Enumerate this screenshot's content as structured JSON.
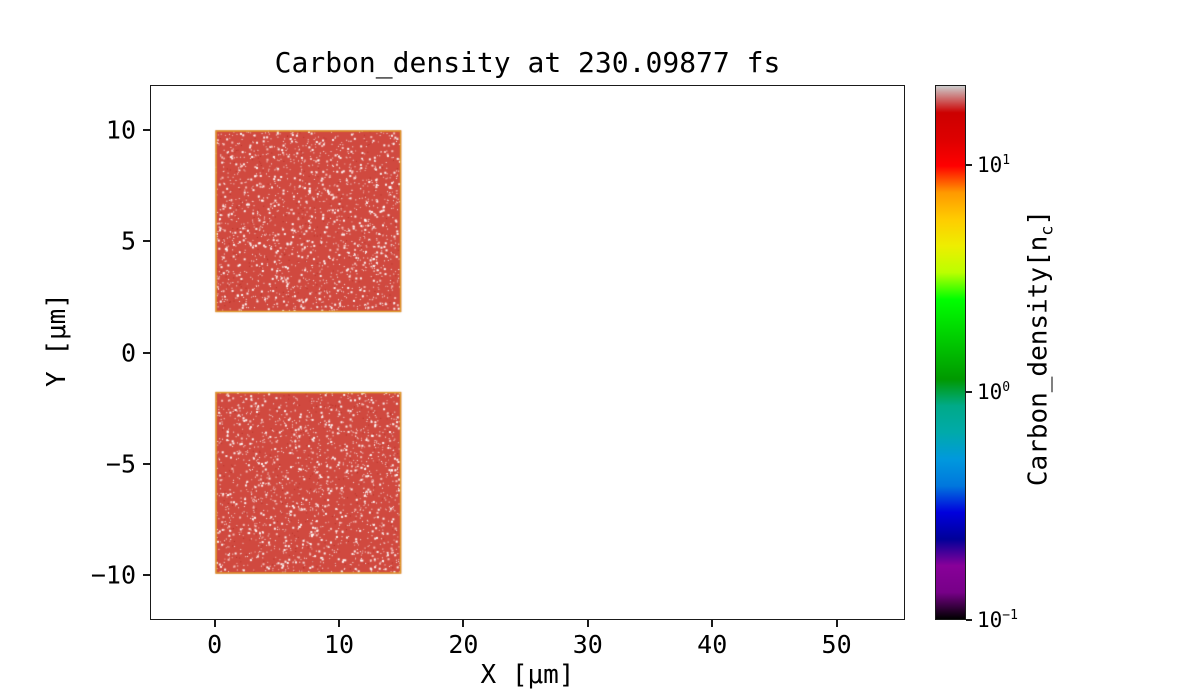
{
  "figure": {
    "background": "#ffffff",
    "frame_color": "#1a1a1a"
  },
  "chart_data": {
    "type": "heatmap",
    "title": "Carbon_density at 230.09877 fs",
    "xlabel": "X [μm]",
    "ylabel": "Y [μm]",
    "xlim": [
      -5.2,
      55.5
    ],
    "ylim": [
      -12,
      12
    ],
    "xticks": [
      0,
      10,
      20,
      30,
      40,
      50
    ],
    "yticks": [
      -10,
      -5,
      0,
      5,
      10
    ],
    "grid": false,
    "legend": "none",
    "regions": [
      {
        "name": "upper-slab",
        "x0": 0,
        "x1": 15,
        "y0": 1.8,
        "y1": 10,
        "density_nc": 10
      },
      {
        "name": "lower-slab",
        "x0": 0,
        "x1": 15,
        "y0": -10,
        "y1": -1.8,
        "density_nc": 10
      }
    ],
    "region_fill_color": "#d0493f",
    "region_edge_color": "#dd9b28",
    "speckle_color": "#ffffff",
    "colorbar": {
      "label": "Carbon_density[n_c]",
      "label_parts": {
        "pre": "Carbon_density[n",
        "sub": "c",
        "post": "]"
      },
      "scale": "log",
      "min_exp": -1,
      "max_exp": 1.35,
      "colormap": "nipy_spectral",
      "ticks": [
        {
          "mantissa": "10",
          "exponent": "1",
          "value": 10
        },
        {
          "mantissa": "10",
          "exponent": "0",
          "value": 1
        },
        {
          "mantissa": "10",
          "exponent": "−1",
          "value": 0.1
        }
      ],
      "stops": [
        {
          "pos": 0.0,
          "color": "#000000"
        },
        {
          "pos": 0.05,
          "color": "#770088"
        },
        {
          "pos": 0.1,
          "color": "#880099"
        },
        {
          "pos": 0.15,
          "color": "#000099"
        },
        {
          "pos": 0.2,
          "color": "#0000dd"
        },
        {
          "pos": 0.25,
          "color": "#0077dd"
        },
        {
          "pos": 0.3,
          "color": "#0099dd"
        },
        {
          "pos": 0.35,
          "color": "#00aaaa"
        },
        {
          "pos": 0.4,
          "color": "#00aa88"
        },
        {
          "pos": 0.45,
          "color": "#009900"
        },
        {
          "pos": 0.5,
          "color": "#00bb00"
        },
        {
          "pos": 0.55,
          "color": "#00dd00"
        },
        {
          "pos": 0.6,
          "color": "#00ff00"
        },
        {
          "pos": 0.65,
          "color": "#bbff00"
        },
        {
          "pos": 0.7,
          "color": "#eeee00"
        },
        {
          "pos": 0.75,
          "color": "#ffcc00"
        },
        {
          "pos": 0.8,
          "color": "#ff9900"
        },
        {
          "pos": 0.85,
          "color": "#ff0000"
        },
        {
          "pos": 0.9,
          "color": "#dd0000"
        },
        {
          "pos": 0.95,
          "color": "#cc0000"
        },
        {
          "pos": 1.0,
          "color": "#cccccc"
        }
      ]
    }
  }
}
